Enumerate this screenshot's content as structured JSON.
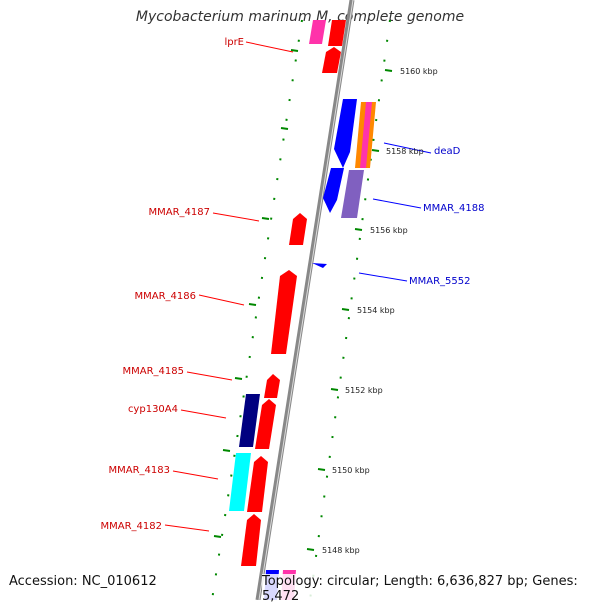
{
  "title": "Mycobacterium marinum M, complete genome",
  "footer": {
    "accession": "Accession: NC_010612",
    "summary": "Topology: circular; Length: 6,636,827 bp; Genes: 5,472"
  },
  "colors": {
    "forward_gene": "#ff0000",
    "reverse_gene": "#0000ff",
    "forward_label": "#cc0000",
    "reverse_label": "#0000cc",
    "backbone": "#888888",
    "tick": "#008800",
    "cyp130A4": "#000080",
    "MMAR_4183": "#00ffff",
    "MMAR_4188": "#8060c0"
  },
  "scale_ticks": [
    "5160 kbp",
    "5158 kbp",
    "5156 kbp",
    "5154 kbp",
    "5152 kbp",
    "5150 kbp",
    "5148 kbp"
  ],
  "forward_labels": [
    "lprE",
    "MMAR_4187",
    "MMAR_4186",
    "MMAR_4185",
    "cyp130A4",
    "MMAR_4183",
    "MMAR_4182"
  ],
  "reverse_labels": [
    "deaD",
    "MMAR_4188",
    "MMAR_5552"
  ]
}
